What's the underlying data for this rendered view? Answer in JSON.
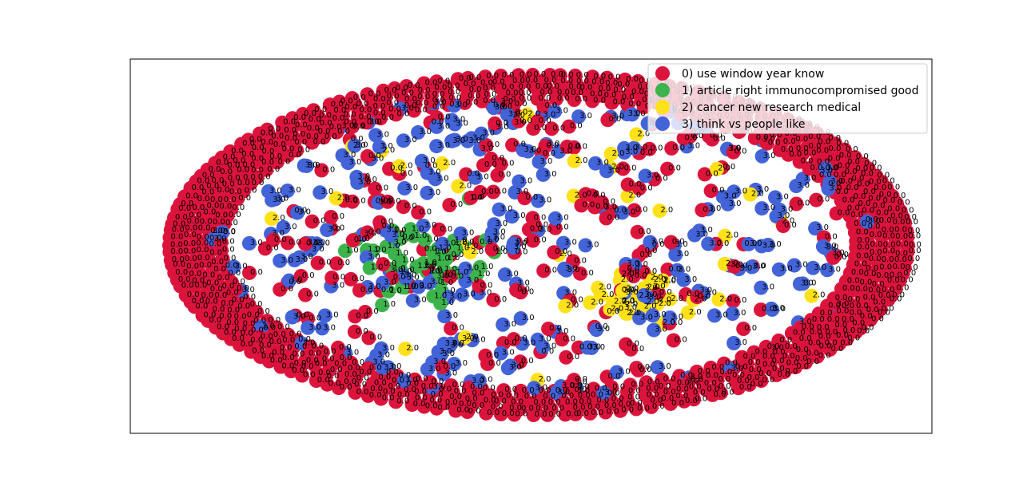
{
  "chart_data": {
    "type": "scatter",
    "title": "",
    "xlabel": "",
    "ylabel": "",
    "axes_ticks": false,
    "grid": false,
    "legend_placement": "top-right",
    "layout_shape": "ellipse",
    "node_radius_hint": "medium",
    "series": [
      {
        "name": "0) use window year know",
        "label": "0",
        "value_text": "0.0",
        "color": "#dc143c",
        "count": 830
      },
      {
        "name": "1) article right immunocompromised good",
        "label": "1",
        "value_text": "1.0",
        "color": "#3cb44b",
        "count": 48
      },
      {
        "name": "2) cancer new research medical",
        "label": "2",
        "value_text": "2.0",
        "color": "#ffe119",
        "count": 60
      },
      {
        "name": "3) think vs people like",
        "label": "3",
        "value_text": "3.0",
        "color": "#4363d8",
        "count": 250
      }
    ],
    "clusters": [
      {
        "series": 1,
        "cx": -0.32,
        "cy": 0.08,
        "spread": 0.22
      },
      {
        "series": 2,
        "cx": 0.28,
        "cy": -0.3,
        "spread": 0.18
      },
      {
        "series": 3,
        "cx": 0.0,
        "cy": 0.0,
        "spread": 0.9
      }
    ]
  }
}
